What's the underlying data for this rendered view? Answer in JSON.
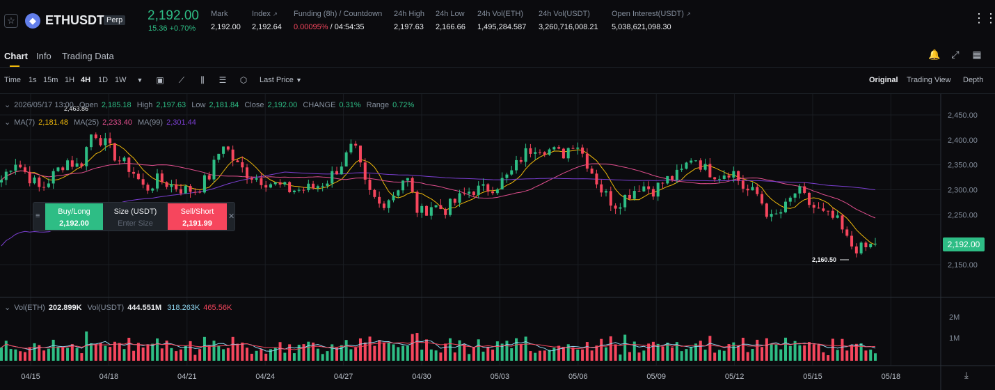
{
  "header": {
    "symbol": "ETHUSDT",
    "badge": "Perp",
    "coin_icon": "eth-icon",
    "last_price": "2,192.00",
    "change": "15.36 +0.70%",
    "stats": [
      {
        "label": "Mark",
        "value": "2,192.00"
      },
      {
        "label": "Index",
        "value": "2,192.64"
      },
      {
        "label": "Funding (8h) / Countdown",
        "value_rate": "0.00095%",
        "value_countdown": "/ 04:54:35"
      },
      {
        "label": "24h High",
        "value": "2,197.63"
      },
      {
        "label": "24h Low",
        "value": "2,166.66"
      },
      {
        "label": "24h Vol(ETH)",
        "value": "1,495,284.587"
      },
      {
        "label": "24h Vol(USDT)",
        "value": "3,260,716,008.21"
      },
      {
        "label": "Open Interest(USDT)",
        "value": "5,038,621,098.30"
      }
    ],
    "index_sup": "↗",
    "oi_sup": "↗"
  },
  "tabs": [
    "Chart",
    "Info",
    "Trading Data"
  ],
  "toolbar": {
    "intervals": [
      "Time",
      "1s",
      "15m",
      "1H",
      "4H",
      "1D",
      "1W"
    ],
    "active_interval": "4H",
    "price_type": "Last Price",
    "views": [
      "Original",
      "Trading View",
      "Depth"
    ],
    "active_view": "Original"
  },
  "legend": {
    "date": "2026/05/17 13:00",
    "open_label": "Open",
    "open": "2,185.18",
    "high_label": "High",
    "high": "2,197.63",
    "low_label": "Low",
    "low": "2,181.84",
    "close_label": "Close",
    "close": "2,192.00",
    "change_label": "CHANGE",
    "change": "0.31%",
    "range_label": "Range",
    "range": "0.72%",
    "ma7_label": "MA(7)",
    "ma7": "2,181.48",
    "ma25_label": "MA(25)",
    "ma25": "2,233.40",
    "ma99_label": "MA(99)",
    "ma99": "2,301.44",
    "vol_label": "Vol(ETH)",
    "vol_eth": "202.899K",
    "volu_label": "Vol(USDT)",
    "vol_usdt": "444.551M",
    "vol_ma1": "318.263K",
    "vol_ma2": "465.56K"
  },
  "trade": {
    "buy_label": "Buy/Long",
    "buy_price": "2,192.00",
    "size_label": "Size (USDT)",
    "size_placeholder": "Enter Size",
    "sell_label": "Sell/Short",
    "sell_price": "2,191.99"
  },
  "chart_data": {
    "type": "candlestick",
    "price_axis": [
      "2,450.00",
      "2,400.00",
      "2,350.00",
      "2,300.00",
      "2,250.00",
      "2,150.00"
    ],
    "price_ticks": [
      2450,
      2400,
      2350,
      2300,
      2250,
      2150
    ],
    "volume_axis": [
      "2M",
      "1M"
    ],
    "x_labels": [
      "04/15",
      "04/18",
      "04/21",
      "04/24",
      "04/27",
      "04/30",
      "05/03",
      "05/06",
      "05/09",
      "05/12",
      "05/15",
      "05/18"
    ],
    "current_price": "2,192.00",
    "high_marker": "2,463.86",
    "low_marker": "2,160.50",
    "ylim": [
      2110,
      2490
    ],
    "colors": {
      "up": "#2ebd85",
      "down": "#f6465d",
      "ma7": "#f0b90b",
      "ma25": "#e34f8f",
      "ma99": "#7b3fd2",
      "vol_ma1": "#8fd6ef",
      "vol_ma2": "#f6465d"
    },
    "closes_anchor": [
      2320,
      2360,
      2330,
      2300,
      2330,
      2360,
      2345,
      2420,
      2390,
      2360,
      2340,
      2300,
      2320,
      2310,
      2300,
      2300,
      2330,
      2395,
      2350,
      2330,
      2320,
      2310,
      2300,
      2300,
      2305,
      2320,
      2350,
      2390,
      2300,
      2270,
      2290,
      2330,
      2250,
      2270,
      2260,
      2280,
      2300,
      2300,
      2310,
      2330,
      2370,
      2390,
      2380,
      2370,
      2400,
      2350,
      2300,
      2270,
      2290,
      2310,
      2300,
      2320,
      2330,
      2370,
      2340,
      2330,
      2340,
      2300,
      2290,
      2240,
      2260,
      2300,
      2270,
      2250,
      2240,
      2190,
      2180,
      2192
    ]
  }
}
